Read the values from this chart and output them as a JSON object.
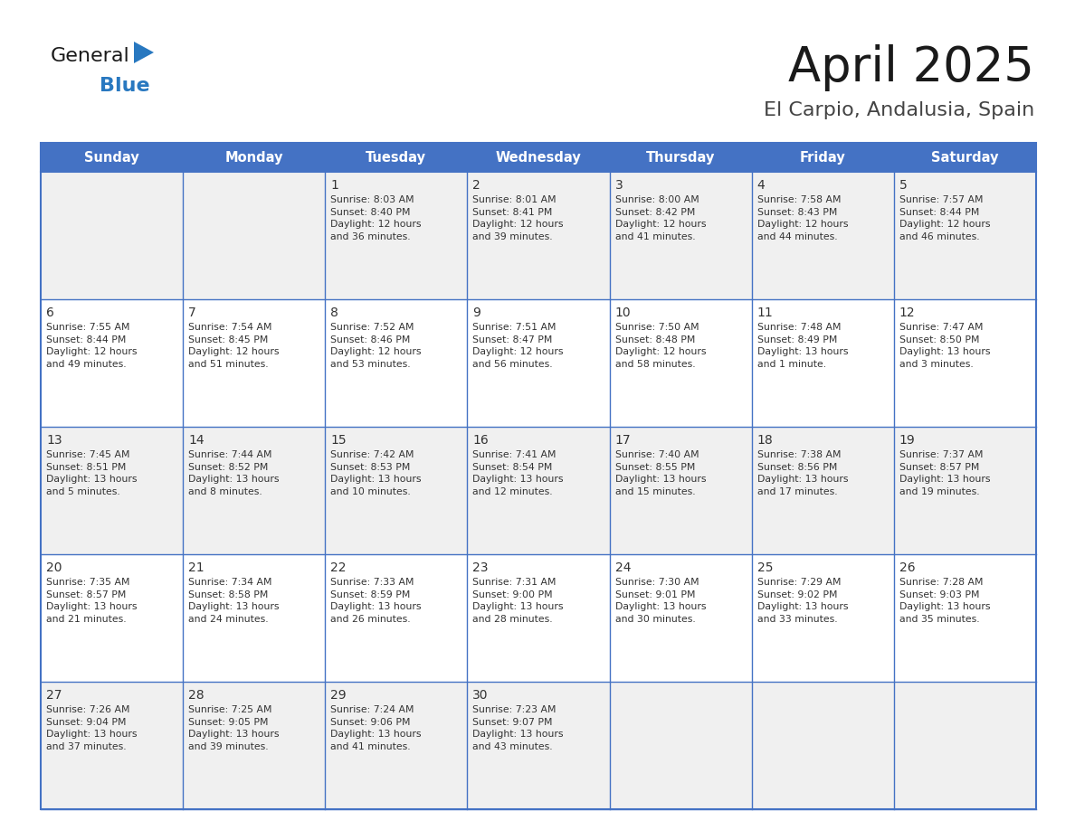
{
  "title": "April 2025",
  "subtitle": "El Carpio, Andalusia, Spain",
  "days_of_week": [
    "Sunday",
    "Monday",
    "Tuesday",
    "Wednesday",
    "Thursday",
    "Friday",
    "Saturday"
  ],
  "header_bg": "#4472C4",
  "header_text_color": "#FFFFFF",
  "cell_bg_light": "#F0F0F0",
  "cell_bg_white": "#FFFFFF",
  "cell_text_color": "#333333",
  "grid_color": "#4472C4",
  "calendar": [
    [
      {
        "day": "",
        "text": ""
      },
      {
        "day": "",
        "text": ""
      },
      {
        "day": "1",
        "text": "Sunrise: 8:03 AM\nSunset: 8:40 PM\nDaylight: 12 hours\nand 36 minutes."
      },
      {
        "day": "2",
        "text": "Sunrise: 8:01 AM\nSunset: 8:41 PM\nDaylight: 12 hours\nand 39 minutes."
      },
      {
        "day": "3",
        "text": "Sunrise: 8:00 AM\nSunset: 8:42 PM\nDaylight: 12 hours\nand 41 minutes."
      },
      {
        "day": "4",
        "text": "Sunrise: 7:58 AM\nSunset: 8:43 PM\nDaylight: 12 hours\nand 44 minutes."
      },
      {
        "day": "5",
        "text": "Sunrise: 7:57 AM\nSunset: 8:44 PM\nDaylight: 12 hours\nand 46 minutes."
      }
    ],
    [
      {
        "day": "6",
        "text": "Sunrise: 7:55 AM\nSunset: 8:44 PM\nDaylight: 12 hours\nand 49 minutes."
      },
      {
        "day": "7",
        "text": "Sunrise: 7:54 AM\nSunset: 8:45 PM\nDaylight: 12 hours\nand 51 minutes."
      },
      {
        "day": "8",
        "text": "Sunrise: 7:52 AM\nSunset: 8:46 PM\nDaylight: 12 hours\nand 53 minutes."
      },
      {
        "day": "9",
        "text": "Sunrise: 7:51 AM\nSunset: 8:47 PM\nDaylight: 12 hours\nand 56 minutes."
      },
      {
        "day": "10",
        "text": "Sunrise: 7:50 AM\nSunset: 8:48 PM\nDaylight: 12 hours\nand 58 minutes."
      },
      {
        "day": "11",
        "text": "Sunrise: 7:48 AM\nSunset: 8:49 PM\nDaylight: 13 hours\nand 1 minute."
      },
      {
        "day": "12",
        "text": "Sunrise: 7:47 AM\nSunset: 8:50 PM\nDaylight: 13 hours\nand 3 minutes."
      }
    ],
    [
      {
        "day": "13",
        "text": "Sunrise: 7:45 AM\nSunset: 8:51 PM\nDaylight: 13 hours\nand 5 minutes."
      },
      {
        "day": "14",
        "text": "Sunrise: 7:44 AM\nSunset: 8:52 PM\nDaylight: 13 hours\nand 8 minutes."
      },
      {
        "day": "15",
        "text": "Sunrise: 7:42 AM\nSunset: 8:53 PM\nDaylight: 13 hours\nand 10 minutes."
      },
      {
        "day": "16",
        "text": "Sunrise: 7:41 AM\nSunset: 8:54 PM\nDaylight: 13 hours\nand 12 minutes."
      },
      {
        "day": "17",
        "text": "Sunrise: 7:40 AM\nSunset: 8:55 PM\nDaylight: 13 hours\nand 15 minutes."
      },
      {
        "day": "18",
        "text": "Sunrise: 7:38 AM\nSunset: 8:56 PM\nDaylight: 13 hours\nand 17 minutes."
      },
      {
        "day": "19",
        "text": "Sunrise: 7:37 AM\nSunset: 8:57 PM\nDaylight: 13 hours\nand 19 minutes."
      }
    ],
    [
      {
        "day": "20",
        "text": "Sunrise: 7:35 AM\nSunset: 8:57 PM\nDaylight: 13 hours\nand 21 minutes."
      },
      {
        "day": "21",
        "text": "Sunrise: 7:34 AM\nSunset: 8:58 PM\nDaylight: 13 hours\nand 24 minutes."
      },
      {
        "day": "22",
        "text": "Sunrise: 7:33 AM\nSunset: 8:59 PM\nDaylight: 13 hours\nand 26 minutes."
      },
      {
        "day": "23",
        "text": "Sunrise: 7:31 AM\nSunset: 9:00 PM\nDaylight: 13 hours\nand 28 minutes."
      },
      {
        "day": "24",
        "text": "Sunrise: 7:30 AM\nSunset: 9:01 PM\nDaylight: 13 hours\nand 30 minutes."
      },
      {
        "day": "25",
        "text": "Sunrise: 7:29 AM\nSunset: 9:02 PM\nDaylight: 13 hours\nand 33 minutes."
      },
      {
        "day": "26",
        "text": "Sunrise: 7:28 AM\nSunset: 9:03 PM\nDaylight: 13 hours\nand 35 minutes."
      }
    ],
    [
      {
        "day": "27",
        "text": "Sunrise: 7:26 AM\nSunset: 9:04 PM\nDaylight: 13 hours\nand 37 minutes."
      },
      {
        "day": "28",
        "text": "Sunrise: 7:25 AM\nSunset: 9:05 PM\nDaylight: 13 hours\nand 39 minutes."
      },
      {
        "day": "29",
        "text": "Sunrise: 7:24 AM\nSunset: 9:06 PM\nDaylight: 13 hours\nand 41 minutes."
      },
      {
        "day": "30",
        "text": "Sunrise: 7:23 AM\nSunset: 9:07 PM\nDaylight: 13 hours\nand 43 minutes."
      },
      {
        "day": "",
        "text": ""
      },
      {
        "day": "",
        "text": ""
      },
      {
        "day": "",
        "text": ""
      }
    ]
  ],
  "logo_general_color": "#1a1a1a",
  "logo_blue_color": "#2878C0",
  "logo_triangle_color": "#2878C0"
}
